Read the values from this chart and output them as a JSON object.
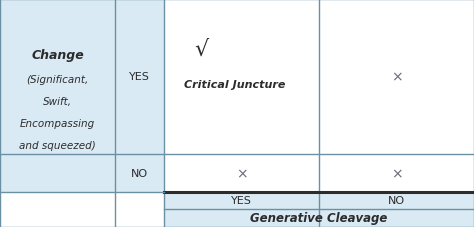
{
  "left_header_text_bold": "Change",
  "left_header_text_rest": [
    "(Significant,",
    "Swift,",
    "Encompassing",
    "and squeezed)"
  ],
  "row_labels": [
    "YES",
    "NO"
  ],
  "col_labels_bottom": [
    "YES",
    "NO"
  ],
  "bottom_label": "Generative Cleavage",
  "sqrt_symbol": "√",
  "top_left_label": "Critical Juncture",
  "cross": "×",
  "light_blue": "#daeaf4",
  "border_color": "#6b8fa3",
  "thick_border_color": "#2c2c2c",
  "text_color": "#2c2c2c",
  "sym_color": "#6b6b7a",
  "fig_width": 4.74,
  "fig_height": 2.28,
  "dpi": 100
}
